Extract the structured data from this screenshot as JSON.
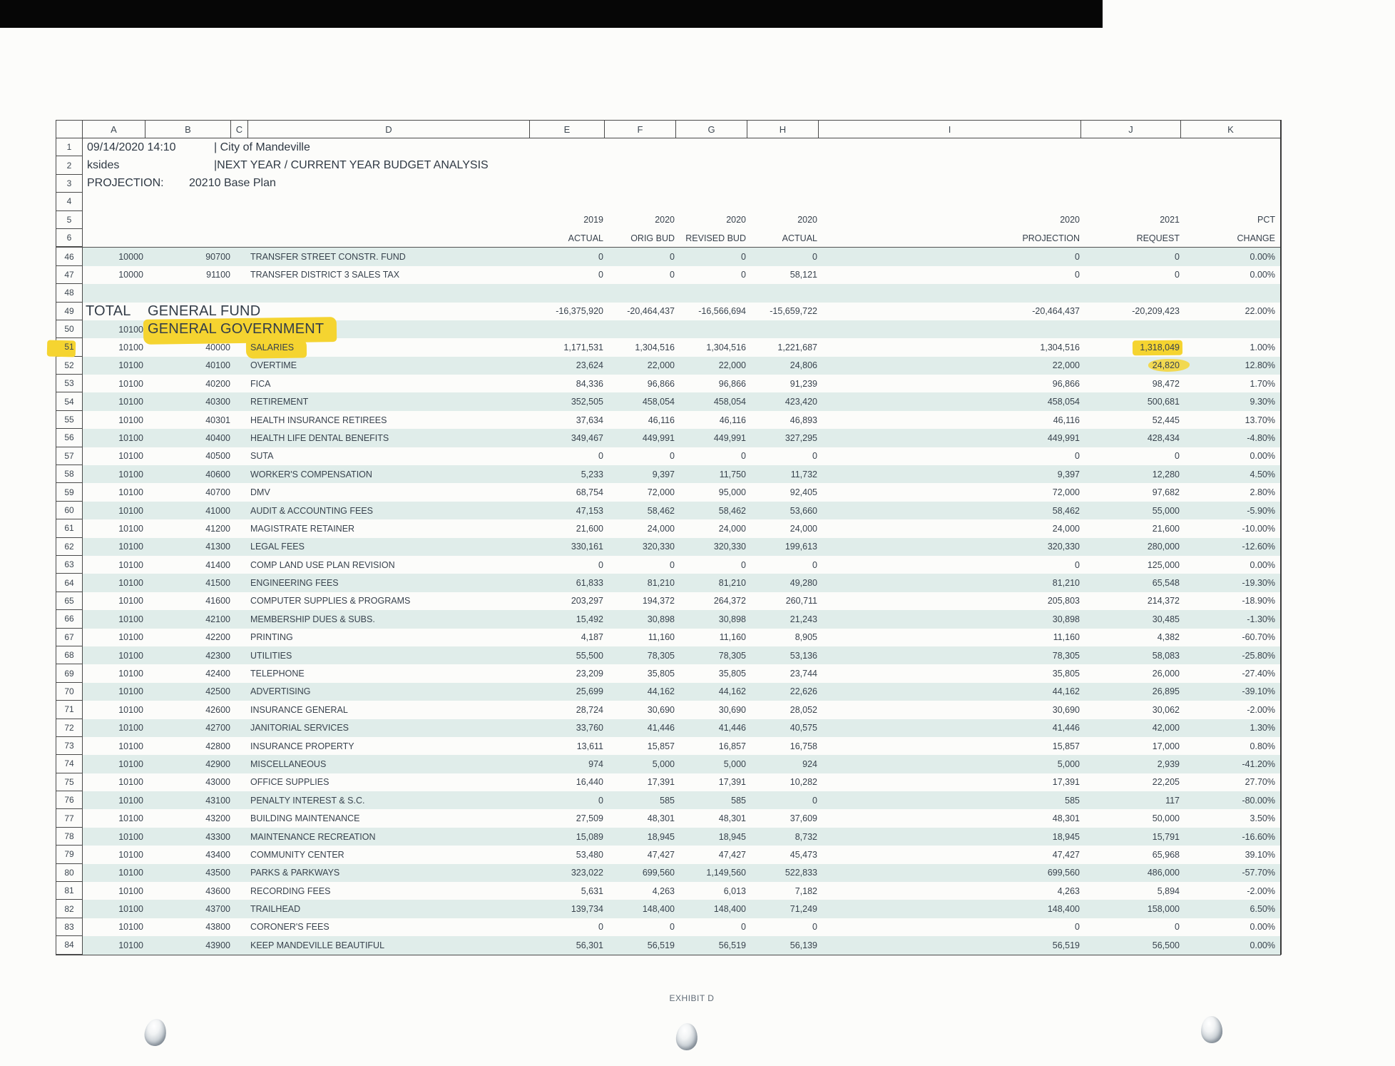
{
  "scan": {
    "exhibit_label": "EXHIBIT D"
  },
  "sheet": {
    "col_letters": [
      "A",
      "B",
      "C",
      "D",
      "E",
      "F",
      "G",
      "H",
      "I",
      "J",
      "K"
    ],
    "info_rows": [
      {
        "n": "1",
        "a": "09/14/2020 14:10",
        "b": "| City of Mandeville"
      },
      {
        "n": "2",
        "a": "ksides",
        "b": "|NEXT YEAR / CURRENT YEAR BUDGET ANALYSIS"
      },
      {
        "n": "3",
        "a": "PROJECTION:",
        "b": "20210 Base Plan"
      },
      {
        "n": "4"
      },
      {
        "n": "5",
        "cols": [
          "2019",
          "2020",
          "2020",
          "2020",
          "2020",
          "2021",
          "PCT"
        ]
      },
      {
        "n": "6",
        "cols": [
          "ACTUAL",
          "ORIG BUD",
          "REVISED BUD",
          "ACTUAL",
          "PROJECTION",
          "REQUEST",
          "CHANGE"
        ]
      }
    ],
    "data_rows": [
      {
        "n": "46",
        "a": "10000",
        "b": "90700",
        "d": "TRANSFER STREET CONSTR. FUND",
        "v": [
          "0",
          "0",
          "0",
          "0",
          "0",
          "0",
          "0.00%"
        ]
      },
      {
        "n": "47",
        "a": "10000",
        "b": "91100",
        "d": "TRANSFER DISTRICT 3 SALES TAX",
        "v": [
          "0",
          "0",
          "0",
          "58,121",
          "0",
          "0",
          "0.00%"
        ]
      },
      {
        "n": "48"
      },
      {
        "n": "49",
        "a": "TOTAL",
        "a_left": true,
        "big": true,
        "merged": true,
        "d": "GENERAL FUND",
        "v": [
          "-16,375,920",
          "-20,464,437",
          "-16,566,694",
          "-15,659,722",
          "-20,464,437",
          "-20,209,423",
          "22.00%"
        ]
      },
      {
        "n": "50",
        "a": "10100",
        "big": true,
        "merged": true,
        "hl_d": true,
        "d": "GENERAL GOVERNMENT"
      },
      {
        "n": "51",
        "a": "10100",
        "b": "40000",
        "d": "SALARIES",
        "hl_d": true,
        "hl_n": true,
        "hl_v": 5,
        "v": [
          "1,171,531",
          "1,304,516",
          "1,304,516",
          "1,221,687",
          "1,304,516",
          "1,318,049",
          "1.00%"
        ]
      },
      {
        "n": "52",
        "a": "10100",
        "b": "40100",
        "d": "OVERTIME",
        "hl_v2": 5,
        "v": [
          "23,624",
          "22,000",
          "22,000",
          "24,806",
          "22,000",
          "24,820",
          "12.80%"
        ]
      },
      {
        "n": "53",
        "a": "10100",
        "b": "40200",
        "d": "FICA",
        "v": [
          "84,336",
          "96,866",
          "96,866",
          "91,239",
          "96,866",
          "98,472",
          "1.70%"
        ]
      },
      {
        "n": "54",
        "a": "10100",
        "b": "40300",
        "d": "RETIREMENT",
        "v": [
          "352,505",
          "458,054",
          "458,054",
          "423,420",
          "458,054",
          "500,681",
          "9.30%"
        ]
      },
      {
        "n": "55",
        "a": "10100",
        "b": "40301",
        "d": "HEALTH INSURANCE RETIREES",
        "v": [
          "37,634",
          "46,116",
          "46,116",
          "46,893",
          "46,116",
          "52,445",
          "13.70%"
        ]
      },
      {
        "n": "56",
        "a": "10100",
        "b": "40400",
        "d": "HEALTH LIFE DENTAL BENEFITS",
        "v": [
          "349,467",
          "449,991",
          "449,991",
          "327,295",
          "449,991",
          "428,434",
          "-4.80%"
        ]
      },
      {
        "n": "57",
        "a": "10100",
        "b": "40500",
        "d": "SUTA",
        "v": [
          "0",
          "0",
          "0",
          "0",
          "0",
          "0",
          "0.00%"
        ]
      },
      {
        "n": "58",
        "a": "10100",
        "b": "40600",
        "d": "WORKER'S COMPENSATION",
        "v": [
          "5,233",
          "9,397",
          "11,750",
          "11,732",
          "9,397",
          "12,280",
          "4.50%"
        ]
      },
      {
        "n": "59",
        "a": "10100",
        "b": "40700",
        "d": "DMV",
        "v": [
          "68,754",
          "72,000",
          "95,000",
          "92,405",
          "72,000",
          "97,682",
          "2.80%"
        ]
      },
      {
        "n": "60",
        "a": "10100",
        "b": "41000",
        "d": "AUDIT & ACCOUNTING FEES",
        "v": [
          "47,153",
          "58,462",
          "58,462",
          "53,660",
          "58,462",
          "55,000",
          "-5.90%"
        ]
      },
      {
        "n": "61",
        "a": "10100",
        "b": "41200",
        "d": "MAGISTRATE RETAINER",
        "v": [
          "21,600",
          "24,000",
          "24,000",
          "24,000",
          "24,000",
          "21,600",
          "-10.00%"
        ]
      },
      {
        "n": "62",
        "a": "10100",
        "b": "41300",
        "d": "LEGAL FEES",
        "v": [
          "330,161",
          "320,330",
          "320,330",
          "199,613",
          "320,330",
          "280,000",
          "-12.60%"
        ]
      },
      {
        "n": "63",
        "a": "10100",
        "b": "41400",
        "d": "COMP LAND USE PLAN REVISION",
        "v": [
          "0",
          "0",
          "0",
          "0",
          "0",
          "125,000",
          "0.00%"
        ]
      },
      {
        "n": "64",
        "a": "10100",
        "b": "41500",
        "d": "ENGINEERING FEES",
        "v": [
          "61,833",
          "81,210",
          "81,210",
          "49,280",
          "81,210",
          "65,548",
          "-19.30%"
        ]
      },
      {
        "n": "65",
        "a": "10100",
        "b": "41600",
        "d": "COMPUTER SUPPLIES & PROGRAMS",
        "v": [
          "203,297",
          "194,372",
          "264,372",
          "260,711",
          "205,803",
          "214,372",
          "-18.90%"
        ]
      },
      {
        "n": "66",
        "a": "10100",
        "b": "42100",
        "d": "MEMBERSHIP DUES & SUBS.",
        "v": [
          "15,492",
          "30,898",
          "30,898",
          "21,243",
          "30,898",
          "30,485",
          "-1.30%"
        ]
      },
      {
        "n": "67",
        "a": "10100",
        "b": "42200",
        "d": "PRINTING",
        "v": [
          "4,187",
          "11,160",
          "11,160",
          "8,905",
          "11,160",
          "4,382",
          "-60.70%"
        ]
      },
      {
        "n": "68",
        "a": "10100",
        "b": "42300",
        "d": "UTILITIES",
        "v": [
          "55,500",
          "78,305",
          "78,305",
          "53,136",
          "78,305",
          "58,083",
          "-25.80%"
        ]
      },
      {
        "n": "69",
        "a": "10100",
        "b": "42400",
        "d": "TELEPHONE",
        "v": [
          "23,209",
          "35,805",
          "35,805",
          "23,744",
          "35,805",
          "26,000",
          "-27.40%"
        ]
      },
      {
        "n": "70",
        "a": "10100",
        "b": "42500",
        "d": "ADVERTISING",
        "v": [
          "25,699",
          "44,162",
          "44,162",
          "22,626",
          "44,162",
          "26,895",
          "-39.10%"
        ]
      },
      {
        "n": "71",
        "a": "10100",
        "b": "42600",
        "d": "INSURANCE GENERAL",
        "v": [
          "28,724",
          "30,690",
          "30,690",
          "28,052",
          "30,690",
          "30,062",
          "-2.00%"
        ]
      },
      {
        "n": "72",
        "a": "10100",
        "b": "42700",
        "d": "JANITORIAL SERVICES",
        "v": [
          "33,760",
          "41,446",
          "41,446",
          "40,575",
          "41,446",
          "42,000",
          "1.30%"
        ]
      },
      {
        "n": "73",
        "a": "10100",
        "b": "42800",
        "d": "INSURANCE PROPERTY",
        "v": [
          "13,611",
          "15,857",
          "16,857",
          "16,758",
          "15,857",
          "17,000",
          "0.80%"
        ]
      },
      {
        "n": "74",
        "a": "10100",
        "b": "42900",
        "d": "MISCELLANEOUS",
        "v": [
          "974",
          "5,000",
          "5,000",
          "924",
          "5,000",
          "2,939",
          "-41.20%"
        ]
      },
      {
        "n": "75",
        "a": "10100",
        "b": "43000",
        "d": "OFFICE SUPPLIES",
        "v": [
          "16,440",
          "17,391",
          "17,391",
          "10,282",
          "17,391",
          "22,205",
          "27.70%"
        ]
      },
      {
        "n": "76",
        "a": "10100",
        "b": "43100",
        "d": "PENALTY INTEREST & S.C.",
        "v": [
          "0",
          "585",
          "585",
          "0",
          "585",
          "117",
          "-80.00%"
        ]
      },
      {
        "n": "77",
        "a": "10100",
        "b": "43200",
        "d": "BUILDING MAINTENANCE",
        "v": [
          "27,509",
          "48,301",
          "48,301",
          "37,609",
          "48,301",
          "50,000",
          "3.50%"
        ]
      },
      {
        "n": "78",
        "a": "10100",
        "b": "43300",
        "d": "MAINTENANCE RECREATION",
        "v": [
          "15,089",
          "18,945",
          "18,945",
          "8,732",
          "18,945",
          "15,791",
          "-16.60%"
        ]
      },
      {
        "n": "79",
        "a": "10100",
        "b": "43400",
        "d": "COMMUNITY CENTER",
        "v": [
          "53,480",
          "47,427",
          "47,427",
          "45,473",
          "47,427",
          "65,968",
          "39.10%"
        ]
      },
      {
        "n": "80",
        "a": "10100",
        "b": "43500",
        "d": "PARKS & PARKWAYS",
        "v": [
          "323,022",
          "699,560",
          "1,149,560",
          "522,833",
          "699,560",
          "486,000",
          "-57.70%"
        ]
      },
      {
        "n": "81",
        "a": "10100",
        "b": "43600",
        "d": "RECORDING FEES",
        "v": [
          "5,631",
          "4,263",
          "6,013",
          "7,182",
          "4,263",
          "5,894",
          "-2.00%"
        ]
      },
      {
        "n": "82",
        "a": "10100",
        "b": "43700",
        "d": "TRAILHEAD",
        "v": [
          "139,734",
          "148,400",
          "148,400",
          "71,249",
          "148,400",
          "158,000",
          "6.50%"
        ]
      },
      {
        "n": "83",
        "a": "10100",
        "b": "43800",
        "d": "CORONER'S FEES",
        "v": [
          "0",
          "0",
          "0",
          "0",
          "0",
          "0",
          "0.00%"
        ]
      },
      {
        "n": "84",
        "a": "10100",
        "b": "43900",
        "d": "KEEP MANDEVILLE BEAUTIFUL",
        "v": [
          "56,301",
          "56,519",
          "56,519",
          "56,139",
          "56,519",
          "56,500",
          "0.00%"
        ]
      }
    ]
  }
}
